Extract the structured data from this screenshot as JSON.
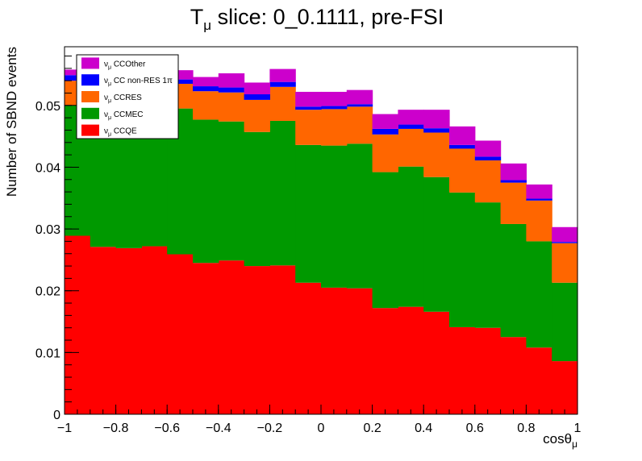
{
  "chart_data": {
    "type": "stacked-histogram",
    "title": {
      "prefix": "T",
      "prefix_sub": "μ",
      "rest": " slice: 0_0.1111, pre-FSI"
    },
    "xlabel": {
      "main": "cosθ",
      "sub": "μ"
    },
    "ylabel": "Number of SBND events",
    "xlim": [
      -1,
      1
    ],
    "ylim": [
      0,
      0.0595
    ],
    "x_ticks": [
      {
        "v": -1,
        "label": "−1"
      },
      {
        "v": -0.8,
        "label": "−0.8"
      },
      {
        "v": -0.6,
        "label": "−0.6"
      },
      {
        "v": -0.4,
        "label": "−0.4"
      },
      {
        "v": -0.2,
        "label": "−0.2"
      },
      {
        "v": 0,
        "label": "0"
      },
      {
        "v": 0.2,
        "label": "0.2"
      },
      {
        "v": 0.4,
        "label": "0.4"
      },
      {
        "v": 0.6,
        "label": "0.6"
      },
      {
        "v": 0.8,
        "label": "0.8"
      },
      {
        "v": 1,
        "label": "1"
      }
    ],
    "y_ticks": [
      {
        "v": 0,
        "label": "0"
      },
      {
        "v": 0.01,
        "label": "0.01"
      },
      {
        "v": 0.02,
        "label": "0.02"
      },
      {
        "v": 0.03,
        "label": "0.03"
      },
      {
        "v": 0.04,
        "label": "0.04"
      },
      {
        "v": 0.05,
        "label": "0.05"
      }
    ],
    "bin_edges": [
      -1,
      -0.9,
      -0.8,
      -0.7,
      -0.6,
      -0.5,
      -0.4,
      -0.3,
      -0.2,
      -0.1,
      0,
      0.1,
      0.2,
      0.3,
      0.4,
      0.5,
      0.6,
      0.7,
      0.8,
      0.9,
      1
    ],
    "series": [
      {
        "name": "CCQE",
        "color": "#ff0000",
        "values": [
          0.0289,
          0.0271,
          0.0269,
          0.0272,
          0.0259,
          0.0245,
          0.0249,
          0.024,
          0.0241,
          0.0213,
          0.0205,
          0.0204,
          0.0172,
          0.0174,
          0.0166,
          0.0141,
          0.014,
          0.0125,
          0.0108,
          0.0086
        ]
      },
      {
        "name": "CCMEC",
        "color": "#009900",
        "values": [
          0.0211,
          0.0219,
          0.0214,
          0.0215,
          0.0236,
          0.0232,
          0.0225,
          0.0217,
          0.0234,
          0.0223,
          0.023,
          0.0234,
          0.022,
          0.0227,
          0.0218,
          0.0218,
          0.0203,
          0.0183,
          0.0172,
          0.0127
        ]
      },
      {
        "name": "CCRES",
        "color": "#ff6600",
        "values": [
          0.004,
          0.0044,
          0.0047,
          0.0046,
          0.004,
          0.0046,
          0.0047,
          0.0052,
          0.0055,
          0.0057,
          0.0059,
          0.006,
          0.0061,
          0.0061,
          0.0072,
          0.0071,
          0.0068,
          0.0067,
          0.0066,
          0.0064
        ]
      },
      {
        "name": "CC non-RES 1π",
        "color": "#0000ff",
        "values": [
          0.0009,
          0.0009,
          0.0009,
          0.0009,
          0.0007,
          0.0008,
          0.0008,
          0.0009,
          0.0008,
          0.0005,
          0.0005,
          0.0004,
          0.0009,
          0.0007,
          0.0007,
          0.0006,
          0.0006,
          0.0004,
          0.0003,
          0.0002
        ]
      },
      {
        "name": "CCOther",
        "color": "#cc00cc",
        "values": [
          0.0009,
          0.0011,
          0.0014,
          0.0014,
          0.0015,
          0.0015,
          0.0023,
          0.0019,
          0.0021,
          0.0024,
          0.0023,
          0.0023,
          0.0024,
          0.0024,
          0.003,
          0.003,
          0.0026,
          0.0027,
          0.0023,
          0.0024
        ]
      }
    ],
    "legend": {
      "placement": "top-left",
      "label_prefix": "ν",
      "label_prefix_sub": "μ",
      "entries_top_to_bottom": [
        "CCOther",
        "CC non-RES 1π",
        "CCRES",
        "CCMEC",
        "CCQE"
      ]
    },
    "grid": false
  }
}
